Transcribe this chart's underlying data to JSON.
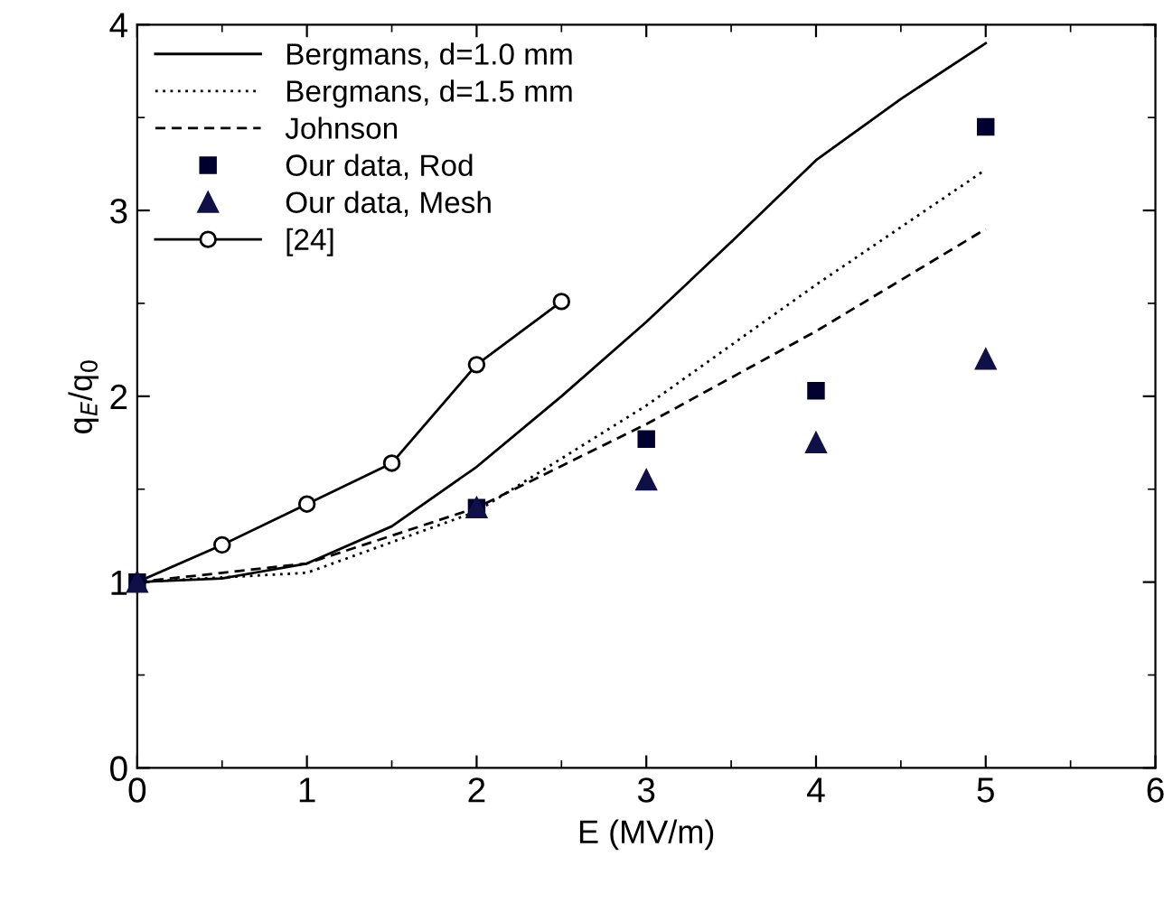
{
  "chart_data": {
    "type": "line",
    "xlabel": "E (MV/m)",
    "ylabel": "q$_{E}$/q$_{0}$",
    "xlim": [
      0,
      6
    ],
    "ylim": [
      0,
      4
    ],
    "xticks": [
      0,
      1,
      2,
      3,
      4,
      5,
      6
    ],
    "yticks": [
      0,
      1,
      2,
      3,
      4
    ],
    "grid": false,
    "legend": "top left",
    "series": [
      {
        "name": "Bergmans, d=1.0 mm",
        "color": "#000000",
        "line_style": "solid",
        "marker": "none",
        "x": [
          0,
          0.5,
          1,
          1.5,
          2,
          2.5,
          3,
          3.5,
          4,
          4.5,
          5
        ],
        "values": [
          1.0,
          1.02,
          1.1,
          1.3,
          1.62,
          2.0,
          2.4,
          2.83,
          3.27,
          3.6,
          3.9
        ]
      },
      {
        "name": "Bergmans, d=1.5 mm",
        "color": "#000000",
        "line_style": "dotted",
        "marker": "none",
        "x": [
          0,
          1,
          2,
          3,
          4,
          5
        ],
        "values": [
          1.0,
          1.05,
          1.38,
          1.95,
          2.6,
          3.22
        ]
      },
      {
        "name": "Johnson",
        "color": "#000000",
        "line_style": "dashed",
        "marker": "none",
        "x": [
          0,
          1,
          2,
          3,
          4,
          5
        ],
        "values": [
          1.0,
          1.1,
          1.4,
          1.85,
          2.35,
          2.9
        ]
      },
      {
        "name": "Our data, Rod",
        "type": "scatter",
        "color": "#000030",
        "marker": "square",
        "x": [
          0,
          2,
          3,
          4,
          5
        ],
        "values": [
          1.0,
          1.4,
          1.77,
          2.03,
          3.45
        ]
      },
      {
        "name": "Our data, Mesh",
        "type": "scatter",
        "color": "#101048",
        "marker": "triangle",
        "x": [
          0,
          2,
          3,
          4,
          5
        ],
        "values": [
          1.0,
          1.4,
          1.55,
          1.75,
          2.2
        ]
      },
      {
        "name": "[24]",
        "color": "#000000",
        "line_style": "solid",
        "marker": "circle",
        "x": [
          0,
          0.5,
          1,
          1.5,
          2,
          2.5
        ],
        "values": [
          1.0,
          1.2,
          1.42,
          1.64,
          2.17,
          2.51
        ]
      }
    ]
  }
}
